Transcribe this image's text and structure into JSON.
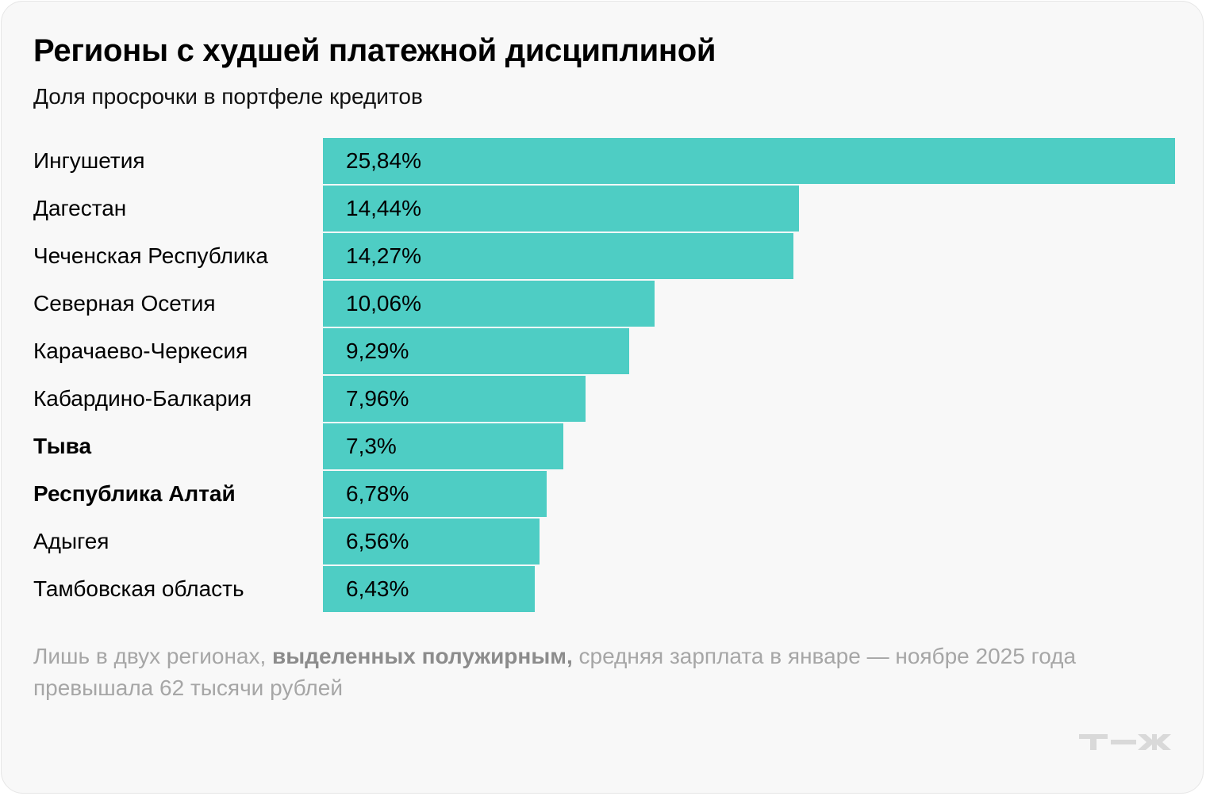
{
  "title": "Регионы с худшей платежной дисциплиной",
  "subtitle": "Доля просрочки в портфеле кредитов",
  "chart_data": {
    "type": "bar",
    "orientation": "horizontal",
    "categories": [
      "Ингушетия",
      "Дагестан",
      "Чеченская Республика",
      "Северная Осетия",
      "Карачаево-Черкесия",
      "Кабардино-Балкария",
      "Тыва",
      "Республика Алтай",
      "Адыгея",
      "Тамбовская область"
    ],
    "values": [
      25.84,
      14.44,
      14.27,
      10.06,
      9.29,
      7.96,
      7.3,
      6.78,
      6.56,
      6.43
    ],
    "value_labels": [
      "25,84%",
      "14,44%",
      "14,27%",
      "10,06%",
      "9,29%",
      "7,96%",
      "7,3%",
      "6,78%",
      "6,56%",
      "6,43%"
    ],
    "bold_categories": [
      "Тыва",
      "Республика Алтай"
    ],
    "unit": "%",
    "bar_color": "#4ecdc4",
    "grid": false,
    "xlim": [
      0,
      25.84
    ]
  },
  "note": {
    "before": "Лишь в двух регионах, ",
    "bold": "выделенных полужирным,",
    "after": " средняя зарплата в январе — ноябре 2025 года превышала 62 тысячи рублей"
  },
  "logo": "Т—Ж"
}
